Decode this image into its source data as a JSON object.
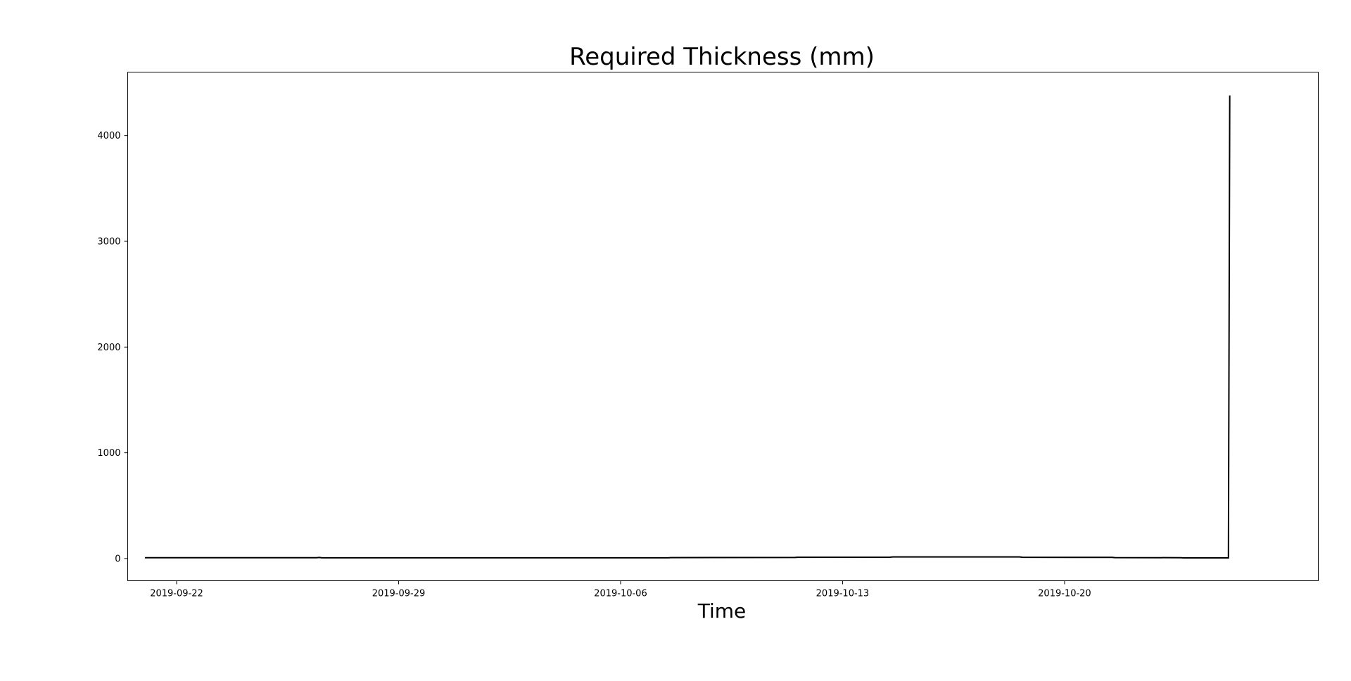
{
  "chart_data": {
    "type": "line",
    "title": "Required Thickness (mm)",
    "xlabel": "Time",
    "ylabel": "",
    "x_type": "date",
    "xlim": [
      "2019-09-20T11:00",
      "2019-10-28T00:00"
    ],
    "ylim": [
      -210,
      4600
    ],
    "xticks": [
      "2019-09-22",
      "2019-09-29",
      "2019-10-06",
      "2019-10-13",
      "2019-10-20"
    ],
    "yticks": [
      0,
      1000,
      2000,
      3000,
      4000
    ],
    "grid": false,
    "series": [
      {
        "color": "#000000",
        "points": [
          {
            "x": "2019-09-21T00:00",
            "y": 8
          },
          {
            "x": "2019-09-26T10:00",
            "y": 8
          },
          {
            "x": "2019-09-26T12:00",
            "y": 10
          },
          {
            "x": "2019-09-26T14:00",
            "y": 7
          },
          {
            "x": "2019-10-07T12:00",
            "y": 7
          },
          {
            "x": "2019-10-07T14:00",
            "y": 9
          },
          {
            "x": "2019-10-11T12:00",
            "y": 10
          },
          {
            "x": "2019-10-11T14:00",
            "y": 12
          },
          {
            "x": "2019-10-14T12:00",
            "y": 13
          },
          {
            "x": "2019-10-14T14:00",
            "y": 15
          },
          {
            "x": "2019-10-18T14:00",
            "y": 15
          },
          {
            "x": "2019-10-18T16:00",
            "y": 12
          },
          {
            "x": "2019-10-21T12:00",
            "y": 11
          },
          {
            "x": "2019-10-21T14:00",
            "y": 9
          },
          {
            "x": "2019-10-23T16:00",
            "y": 8
          },
          {
            "x": "2019-10-23T18:00",
            "y": 6
          },
          {
            "x": "2019-10-25T04:00",
            "y": 6
          },
          {
            "x": "2019-10-25T05:00",
            "y": 4380
          }
        ]
      }
    ]
  }
}
